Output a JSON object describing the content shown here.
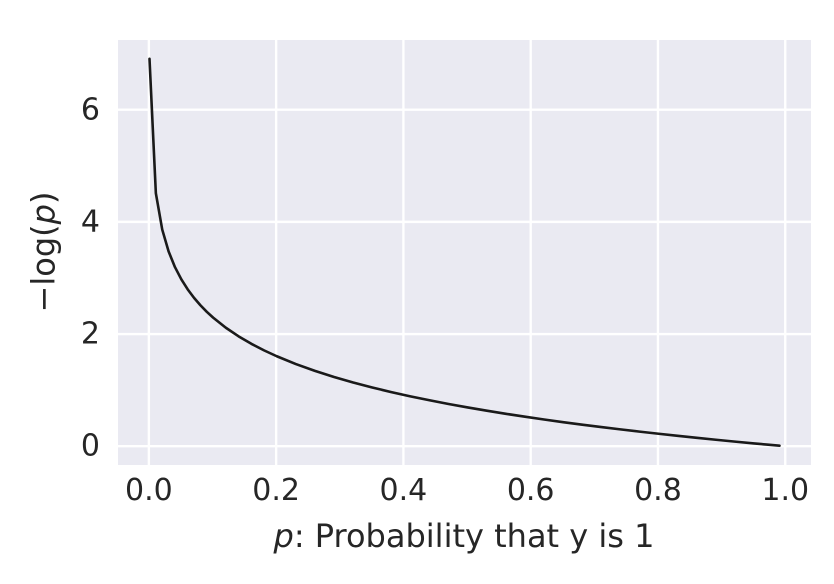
{
  "chart_data": {
    "type": "line",
    "title": "",
    "xlabel": "p: Probability that y is 1",
    "ylabel": "−log(p)",
    "xlabel_italic_part": "p",
    "xlabel_rest_part": ": Probability that y is 1",
    "ylabel_prefix_part": "−log(",
    "ylabel_italic_part": "p",
    "ylabel_suffix_part": ")",
    "function": "y = -ln(p)",
    "xlim": [
      -0.0485,
      1.0405
    ],
    "ylim": [
      -0.335,
      7.243
    ],
    "x_ticks": [
      0.0,
      0.2,
      0.4,
      0.6,
      0.8,
      1.0
    ],
    "x_tick_labels": [
      "0.0",
      "0.2",
      "0.4",
      "0.6",
      "0.8",
      "1.0"
    ],
    "y_ticks": [
      0,
      2,
      4,
      6
    ],
    "y_tick_labels": [
      "0",
      "2",
      "4",
      "6"
    ],
    "grid": true,
    "legend": "none",
    "series": [
      {
        "name": "-log(p)",
        "x": [
          0.001,
          0.011,
          0.021,
          0.031,
          0.041,
          0.051,
          0.061,
          0.071,
          0.081,
          0.091,
          0.101,
          0.121,
          0.141,
          0.161,
          0.181,
          0.201,
          0.231,
          0.261,
          0.291,
          0.321,
          0.351,
          0.381,
          0.411,
          0.441,
          0.471,
          0.501,
          0.531,
          0.561,
          0.591,
          0.621,
          0.651,
          0.681,
          0.711,
          0.741,
          0.771,
          0.801,
          0.831,
          0.861,
          0.891,
          0.921,
          0.951,
          0.971,
          0.991
        ],
        "y": [
          6.908,
          4.51,
          3.863,
          3.474,
          3.194,
          2.976,
          2.797,
          2.645,
          2.513,
          2.397,
          2.293,
          2.112,
          1.959,
          1.826,
          1.709,
          1.604,
          1.465,
          1.343,
          1.234,
          1.136,
          1.047,
          0.965,
          0.889,
          0.819,
          0.753,
          0.691,
          0.633,
          0.578,
          0.526,
          0.476,
          0.429,
          0.384,
          0.341,
          0.3,
          0.26,
          0.222,
          0.185,
          0.15,
          0.115,
          0.082,
          0.05,
          0.029,
          0.009
        ]
      }
    ],
    "colors": {
      "figure_background": "#ffffff",
      "axes_background": "#eaeaf2",
      "gridline": "#ffffff",
      "line": "#1a1a1a",
      "text": "#262626"
    }
  }
}
